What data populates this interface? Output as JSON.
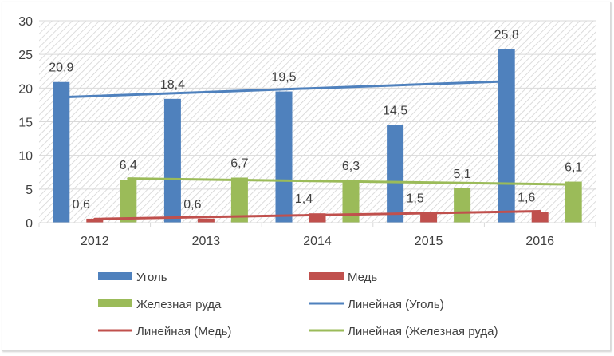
{
  "chart_data": {
    "type": "bar",
    "categories": [
      "2012",
      "2013",
      "2014",
      "2015",
      "2016"
    ],
    "series": [
      {
        "name": "Уголь",
        "values": [
          20.9,
          18.4,
          19.5,
          14.5,
          25.8
        ],
        "labels": [
          "20,9",
          "18,4",
          "19,5",
          "14,5",
          "25,8"
        ],
        "color": "#4f81bd"
      },
      {
        "name": "Медь",
        "values": [
          0.6,
          0.6,
          1.4,
          1.5,
          1.6
        ],
        "labels": [
          "0,6",
          "0,6",
          "1,4",
          "1,5",
          "1,6"
        ],
        "color": "#c0504d"
      },
      {
        "name": "Железная руда",
        "values": [
          6.4,
          6.7,
          6.3,
          5.1,
          6.1
        ],
        "labels": [
          "6,4",
          "6,7",
          "6,3",
          "5,1",
          "6,1"
        ],
        "color": "#9bbb59"
      }
    ],
    "trendlines": [
      {
        "name": "Линейная (Уголь)",
        "series": "Уголь",
        "color": "#4f81bd"
      },
      {
        "name": "Линейная (Медь)",
        "series": "Медь",
        "color": "#c0504d"
      },
      {
        "name": "Линейная (Железная руда)",
        "series": "Железная руда",
        "color": "#9bbb59"
      }
    ],
    "ylim": [
      0,
      30
    ],
    "yticks": [
      "0",
      "5",
      "10",
      "15",
      "20",
      "25",
      "30"
    ],
    "ytick_values": [
      0,
      5,
      10,
      15,
      20,
      25,
      30
    ],
    "title": "",
    "xlabel": "",
    "ylabel": "",
    "legend_position": "bottom",
    "plot_background": "hatched"
  }
}
